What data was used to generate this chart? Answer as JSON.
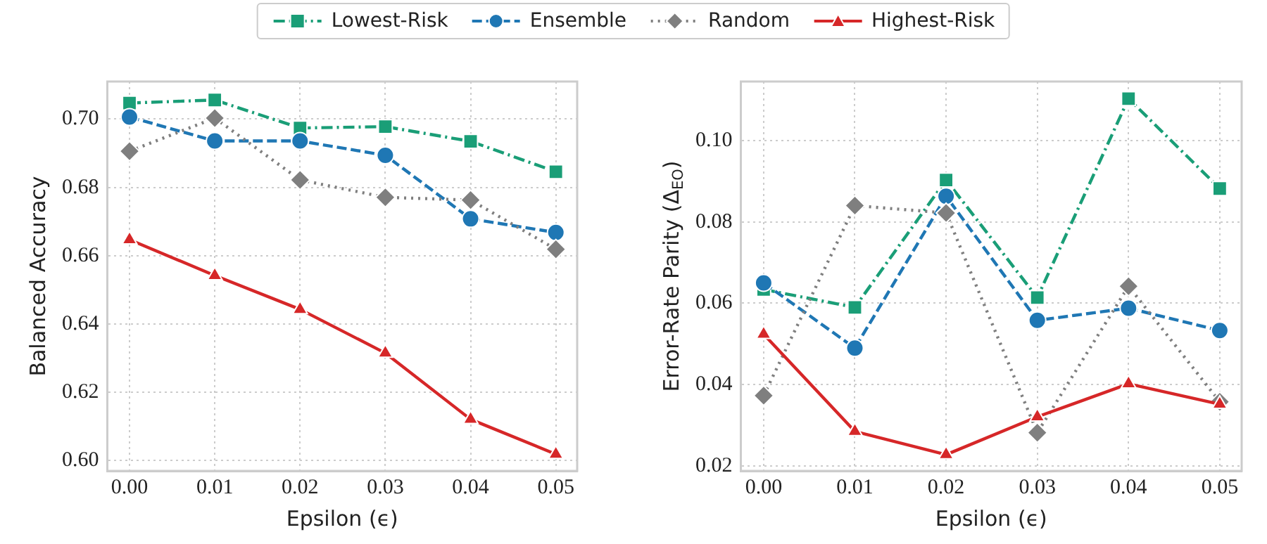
{
  "chart_data": [
    {
      "type": "line",
      "xlabel": "Epsilon (ϵ)",
      "ylabel": "Balanced Accuracy",
      "x": [
        0,
        0.01,
        0.02,
        0.03,
        0.04,
        0.05
      ],
      "xlim": [
        -0.0026,
        0.0525
      ],
      "xticks": [
        {
          "value": 0,
          "label": "0.00"
        },
        0.01,
        0.02,
        0.03,
        0.04,
        0.05
      ],
      "ylim": [
        0.597,
        0.711
      ],
      "yticks": [
        {
          "value": 0.6,
          "label": "0.60"
        },
        0.62,
        0.64,
        0.66,
        0.68,
        {
          "value": 0.7,
          "label": "0.70"
        }
      ],
      "grid": true,
      "legend": "top",
      "series": [
        {
          "name": "Lowest-Risk",
          "color": "#1a9e77",
          "marker": "square",
          "line_style": "dashdot",
          "values": [
            0.7047,
            0.7056,
            0.6974,
            0.6978,
            0.6935,
            0.6846
          ]
        },
        {
          "name": "Ensemble",
          "color": "#1f77b4",
          "marker": "circle",
          "line_style": "dashed",
          "values": [
            0.7006,
            0.6936,
            0.6936,
            0.6894,
            0.6708,
            0.6668
          ]
        },
        {
          "name": "Random",
          "color": "#7f7f7f",
          "marker": "diamond",
          "line_style": "dotted",
          "values": [
            0.6906,
            0.7003,
            0.6822,
            0.6771,
            0.6763,
            0.6619
          ]
        },
        {
          "name": "Highest-Risk",
          "color": "#d62728",
          "marker": "triangle",
          "line_style": "solid",
          "values": [
            0.6647,
            0.6542,
            0.6443,
            0.6315,
            0.6121,
            0.6019
          ]
        }
      ]
    },
    {
      "type": "line",
      "xlabel": "Epsilon (ϵ)",
      "ylabel": "Error-Rate Parity (Δ$_{EO}$)",
      "x": [
        0,
        0.01,
        0.02,
        0.03,
        0.04,
        0.05
      ],
      "xlim": [
        -0.0025,
        0.0524
      ],
      "xticks": [
        {
          "value": 0,
          "label": "0.00"
        },
        0.01,
        0.02,
        0.03,
        0.04,
        0.05
      ],
      "ylim": [
        0.0188,
        0.1145
      ],
      "yticks": [
        0.02,
        0.04,
        0.06,
        0.08,
        {
          "value": 0.1,
          "label": "0.10"
        }
      ],
      "grid": true,
      "legend": false,
      "series": [
        {
          "color": "#1a9e77",
          "marker": "square",
          "line_style": "dashdot",
          "values": [
            0.0634,
            0.059,
            0.0903,
            0.0614,
            0.1103,
            0.0882
          ]
        },
        {
          "color": "#1f77b4",
          "marker": "circle",
          "line_style": "dashed",
          "values": [
            0.065,
            0.049,
            0.0863,
            0.0558,
            0.0588,
            0.0533
          ]
        },
        {
          "color": "#7f7f7f",
          "marker": "diamond",
          "line_style": "dotted",
          "values": [
            0.0373,
            0.084,
            0.0822,
            0.0282,
            0.0642,
            0.0358
          ]
        },
        {
          "color": "#d62728",
          "marker": "triangle",
          "line_style": "solid",
          "values": [
            0.0524,
            0.0285,
            0.0228,
            0.0321,
            0.0402,
            0.0352
          ]
        }
      ]
    }
  ]
}
